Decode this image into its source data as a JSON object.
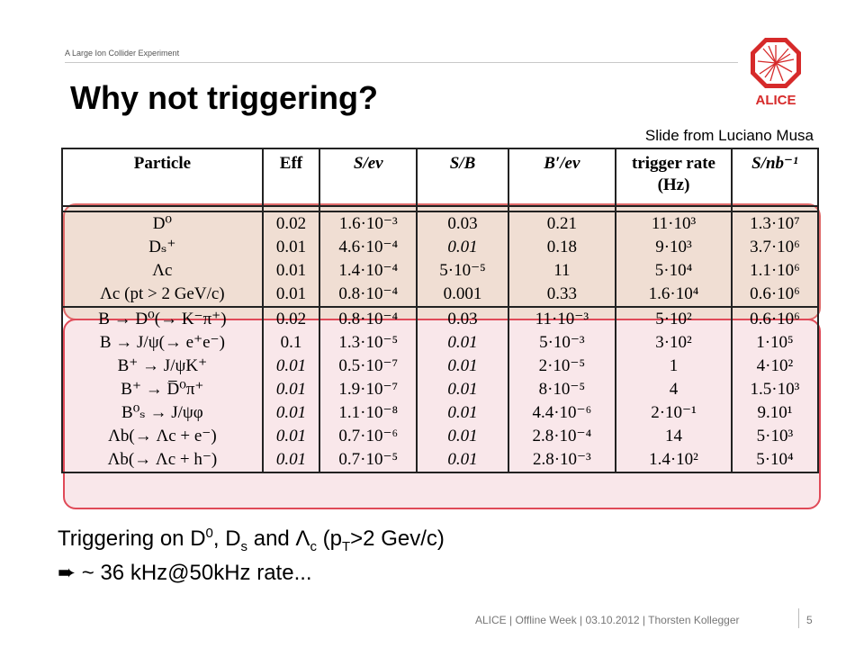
{
  "header": {
    "tagline": "A Large Ion Collider Experiment",
    "logo_text": "ALICE",
    "title": "Why not triggering?",
    "credit": "Slide from Luciano Musa"
  },
  "table": {
    "columns": [
      "Particle",
      "Eff",
      "S/ev",
      "S/B",
      "B′/ev",
      "trigger rate (Hz)",
      "S/nb⁻¹"
    ],
    "rows": [
      [
        "D⁰",
        "0.02",
        "1.6·10⁻³",
        "0.03",
        "0.21",
        "11·10³",
        "1.3·10⁷"
      ],
      [
        "Dₛ⁺",
        "0.01",
        "4.6·10⁻⁴",
        "0.01",
        "0.18",
        "9·10³",
        "3.7·10⁶"
      ],
      [
        "Λc",
        "0.01",
        "1.4·10⁻⁴",
        "5·10⁻⁵",
        "11",
        "5·10⁴",
        "1.1·10⁶"
      ],
      [
        "Λc (pt > 2 GeV/c)",
        "0.01",
        "0.8·10⁻⁴",
        "0.001",
        "0.33",
        "1.6·10⁴",
        "0.6·10⁶"
      ],
      [
        "B → D⁰(→ K⁻π⁺)",
        "0.02",
        "0.8·10⁻⁴",
        "0.03",
        "11·10⁻³",
        "5·10²",
        "0.6·10⁶"
      ],
      [
        "B → J/ψ(→ e⁺e⁻)",
        "0.1",
        "1.3·10⁻⁵",
        "0.01",
        "5·10⁻³",
        "3·10²",
        "1·10⁵"
      ],
      [
        "B⁺ → J/ψK⁺",
        "0.01",
        "0.5·10⁻⁷",
        "0.01",
        "2·10⁻⁵",
        "1",
        "4·10²"
      ],
      [
        "B⁺ → D̅⁰π⁺",
        "0.01",
        "1.9·10⁻⁷",
        "0.01",
        "8·10⁻⁵",
        "4",
        "1.5·10³"
      ],
      [
        "B⁰ₛ → J/ψφ",
        "0.01",
        "1.1·10⁻⁸",
        "0.01",
        "4.4·10⁻⁶",
        "2·10⁻¹",
        "9.10¹"
      ],
      [
        "Λb(→ Λc + e⁻)",
        "0.01",
        "0.7·10⁻⁶",
        "0.01",
        "2.8·10⁻⁴",
        "14",
        "5·10³"
      ],
      [
        "Λb(→ Λc + h⁻)",
        "0.01",
        "0.7·10⁻⁵",
        "0.01",
        "2.8·10⁻³",
        "1.4·10²",
        "5·10⁴"
      ]
    ]
  },
  "body": {
    "line1_a": "Triggering on D",
    "line1_sup": "0",
    "line1_b": ", D",
    "line1_sub1": "s",
    "line1_c": " and Λ",
    "line1_sub2": "c",
    "line1_d": " (p",
    "line1_sub3": "T",
    "line1_e": ">2 Gev/c)",
    "line2_arrow": "➨",
    "line2": " ~ 36 kHz@50kHz rate..."
  },
  "footer": {
    "text": "ALICE | Offline Week | 03.10.2012 | Thorsten Kollegger",
    "page": "5"
  },
  "colors": {
    "highlight_charm": "#e06a6a",
    "highlight_beauty": "#e04a58",
    "logo_red": "#d62a2a"
  }
}
